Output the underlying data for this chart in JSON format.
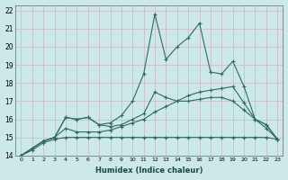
{
  "xlabel": "Humidex (Indice chaleur)",
  "ylabel": "",
  "bg_color": "#cce8e8",
  "grid_color": "#aacccc",
  "line_color": "#2e6b5e",
  "xlim": [
    -0.5,
    23.5
  ],
  "ylim": [
    14,
    22.3
  ],
  "xticks": [
    0,
    1,
    2,
    3,
    4,
    5,
    6,
    7,
    8,
    9,
    10,
    11,
    12,
    13,
    14,
    15,
    16,
    17,
    18,
    19,
    20,
    21,
    22,
    23
  ],
  "yticks": [
    14,
    15,
    16,
    17,
    18,
    19,
    20,
    21,
    22
  ],
  "series": [
    [
      14.0,
      14.4,
      14.8,
      15.0,
      16.1,
      16.0,
      16.1,
      15.7,
      15.8,
      16.2,
      17.0,
      18.5,
      21.8,
      19.3,
      20.0,
      20.5,
      21.3,
      18.6,
      18.5,
      19.2,
      17.8,
      16.0,
      15.7,
      14.9
    ],
    [
      14.0,
      14.4,
      14.8,
      15.0,
      16.1,
      16.0,
      16.1,
      15.7,
      15.6,
      15.7,
      16.0,
      16.3,
      17.5,
      17.2,
      17.0,
      17.3,
      17.5,
      17.6,
      17.7,
      17.8,
      16.9,
      16.0,
      15.7,
      14.9
    ],
    [
      14.0,
      14.4,
      14.8,
      15.0,
      15.5,
      15.3,
      15.3,
      15.3,
      15.4,
      15.6,
      15.8,
      16.0,
      16.4,
      16.7,
      17.0,
      17.0,
      17.1,
      17.2,
      17.2,
      17.0,
      16.5,
      16.0,
      15.5,
      14.9
    ],
    [
      14.0,
      14.3,
      14.7,
      14.9,
      15.0,
      15.0,
      15.0,
      15.0,
      15.0,
      15.0,
      15.0,
      15.0,
      15.0,
      15.0,
      15.0,
      15.0,
      15.0,
      15.0,
      15.0,
      15.0,
      15.0,
      15.0,
      15.0,
      14.9
    ]
  ]
}
